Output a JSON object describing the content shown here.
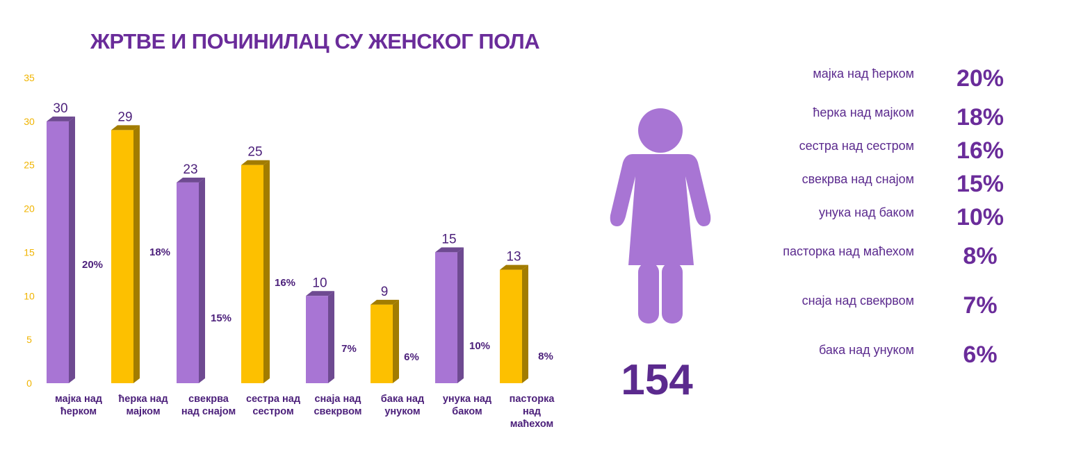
{
  "chart_data": {
    "type": "bar",
    "title": "ЖРТВЕ И ПОЧИНИЛАЦ СУ ЖЕНСКОГ ПОЛА",
    "categories": [
      [
        "мајка над",
        "ћерком"
      ],
      [
        "ћерка над",
        "мајком"
      ],
      [
        "свекрва",
        "над снајом"
      ],
      [
        "сестра над",
        "сестром"
      ],
      [
        "снаја над",
        "свекрвом"
      ],
      [
        "бака над",
        "унуком"
      ],
      [
        "унука над",
        "баком"
      ],
      [
        "пасторка",
        "над",
        "маћехом"
      ]
    ],
    "values": [
      30,
      29,
      23,
      25,
      10,
      9,
      15,
      13
    ],
    "percent_labels": [
      "20%",
      "18%",
      "15%",
      "16%",
      "7%",
      "6%",
      "10%",
      "8%"
    ],
    "ylim": [
      0,
      35
    ],
    "yticks": [
      0,
      5,
      10,
      15,
      20,
      25,
      30,
      35
    ],
    "grid": false,
    "colors": {
      "purple": "#a875d4",
      "purple_side": "#6e4a91",
      "yellow": "#fdc000",
      "yellow_side": "#a27c00",
      "tick": "#f0b400",
      "label": "#4b1f7a"
    }
  },
  "total": "154",
  "summary": [
    {
      "label": "мајка над ћерком",
      "pct": "20%"
    },
    {
      "label": "ћерка над мајком",
      "pct": "18%"
    },
    {
      "label": "сестра над сестром",
      "pct": "16%"
    },
    {
      "label": "свекрва над снајом",
      "pct": "15%"
    },
    {
      "label": "унука над баком",
      "pct": "10%"
    },
    {
      "label": "пасторка над маћехом",
      "pct": "8%"
    },
    {
      "label": "снаја над свекрвом",
      "pct": "7%"
    },
    {
      "label": "бака над унуком",
      "pct": "6%"
    }
  ]
}
